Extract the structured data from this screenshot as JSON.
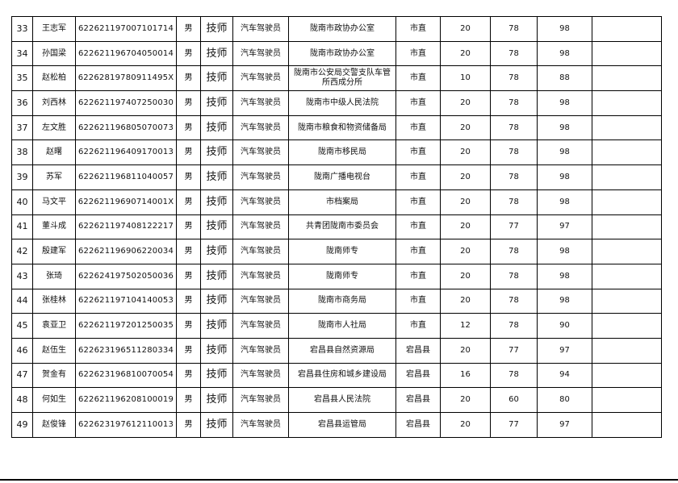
{
  "rows": [
    [
      "33",
      "王志军",
      "622621197007101714",
      "男",
      "技师",
      "汽车驾驶员",
      "陇南市政协办公室",
      "市直",
      "20",
      "78",
      "98",
      ""
    ],
    [
      "34",
      "孙国梁",
      "622621196704050014",
      "男",
      "技师",
      "汽车驾驶员",
      "陇南市政协办公室",
      "市直",
      "20",
      "78",
      "98",
      ""
    ],
    [
      "35",
      "赵松柏",
      "62262819780911495X",
      "男",
      "技师",
      "汽车驾驶员",
      "陇南市公安局交警支队车管所西成分所",
      "市直",
      "10",
      "78",
      "88",
      ""
    ],
    [
      "36",
      "刘西林",
      "622621197407250030",
      "男",
      "技师",
      "汽车驾驶员",
      "陇南市中级人民法院",
      "市直",
      "20",
      "78",
      "98",
      ""
    ],
    [
      "37",
      "左文胜",
      "622621196805070073",
      "男",
      "技师",
      "汽车驾驶员",
      "陇南市粮食和物资储备局",
      "市直",
      "20",
      "78",
      "98",
      ""
    ],
    [
      "38",
      "赵曙",
      "622621196409170013",
      "男",
      "技师",
      "汽车驾驶员",
      "陇南市移民局",
      "市直",
      "20",
      "78",
      "98",
      ""
    ],
    [
      "39",
      "苏军",
      "622621196811040057",
      "男",
      "技师",
      "汽车驾驶员",
      "陇南广播电视台",
      "市直",
      "20",
      "78",
      "98",
      ""
    ],
    [
      "40",
      "马文平",
      "62262119690714001X",
      "男",
      "技师",
      "汽车驾驶员",
      "市档案局",
      "市直",
      "20",
      "78",
      "98",
      ""
    ],
    [
      "41",
      "董斗成",
      "622621197408122217",
      "男",
      "技师",
      "汽车驾驶员",
      "共青团陇南市委员会",
      "市直",
      "20",
      "77",
      "97",
      ""
    ],
    [
      "42",
      "殷建军",
      "622621196906220034",
      "男",
      "技师",
      "汽车驾驶员",
      "陇南师专",
      "市直",
      "20",
      "78",
      "98",
      ""
    ],
    [
      "43",
      "张琦",
      "622624197502050036",
      "男",
      "技师",
      "汽车驾驶员",
      "陇南师专",
      "市直",
      "20",
      "78",
      "98",
      ""
    ],
    [
      "44",
      "张桂林",
      "622621197104140053",
      "男",
      "技师",
      "汽车驾驶员",
      "陇南市商务局",
      "市直",
      "20",
      "78",
      "98",
      ""
    ],
    [
      "45",
      "袁亚卫",
      "622621197201250035",
      "男",
      "技师",
      "汽车驾驶员",
      "陇南市人社局",
      "市直",
      "12",
      "78",
      "90",
      ""
    ],
    [
      "46",
      "赵伍生",
      "622623196511280334",
      "男",
      "技师",
      "汽车驾驶员",
      "宕昌县自然资源局",
      "宕昌县",
      "20",
      "77",
      "97",
      ""
    ],
    [
      "47",
      "贺金有",
      "622623196810070054",
      "男",
      "技师",
      "汽车驾驶员",
      "宕昌县住房和城乡建设局",
      "宕昌县",
      "16",
      "78",
      "94",
      ""
    ],
    [
      "48",
      "何如生",
      "622621196208100019",
      "男",
      "技师",
      "汽车驾驶员",
      "宕昌县人民法院",
      "宕昌县",
      "20",
      "60",
      "80",
      ""
    ],
    [
      "49",
      "赵俊锋",
      "622623197612110013",
      "男",
      "技师",
      "汽车驾驶员",
      "宕昌县运管局",
      "宕昌县",
      "20",
      "77",
      "97",
      ""
    ]
  ]
}
